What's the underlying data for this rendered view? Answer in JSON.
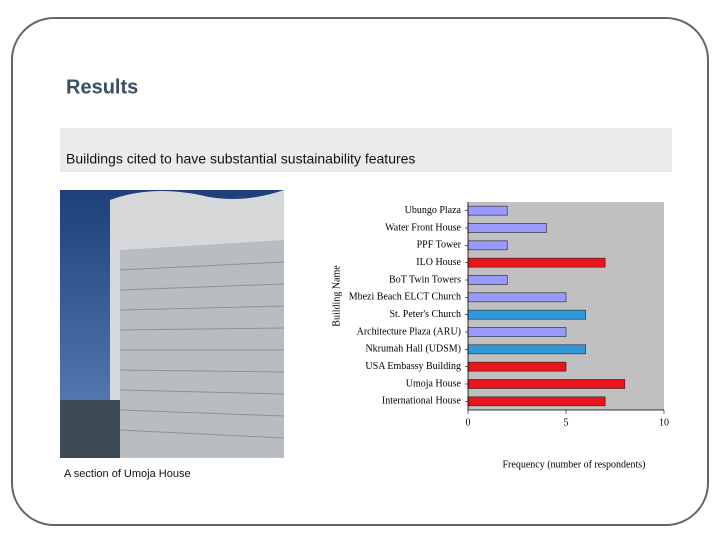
{
  "header": {
    "title": "Results",
    "subtitle": "Buildings cited to have substantial sustainability features"
  },
  "photo": {
    "caption": "A  section of Umoja House"
  },
  "chart_data": {
    "type": "bar",
    "orientation": "horizontal",
    "x_label": "Frequency (number of respondents)",
    "y_label": "Building Name",
    "categories": [
      "Ubungo Plaza",
      "Water Front House",
      "PPF Tower",
      "ILO House",
      "BoT Twin Towers",
      "Mbezi Beach ELCT Church",
      "St. Peter's Church",
      "Architecture Plaza (ARU)",
      "Nkrumah Hall (UDSM)",
      "USA Embassy Building",
      "Umoja House",
      "International House"
    ],
    "values": [
      2,
      4,
      2,
      7,
      2,
      5,
      6,
      5,
      6,
      5,
      8,
      7
    ],
    "colors": [
      "#9999ff",
      "#9999ff",
      "#9999ff",
      "#e8161b",
      "#9999ff",
      "#9999ff",
      "#3399dd",
      "#9999ff",
      "#3399dd",
      "#e8161b",
      "#e8161b",
      "#e8161b"
    ],
    "xlim": [
      0,
      10
    ],
    "xticks": [
      0,
      5,
      10
    ],
    "plot_background": "#c0c0c0"
  }
}
